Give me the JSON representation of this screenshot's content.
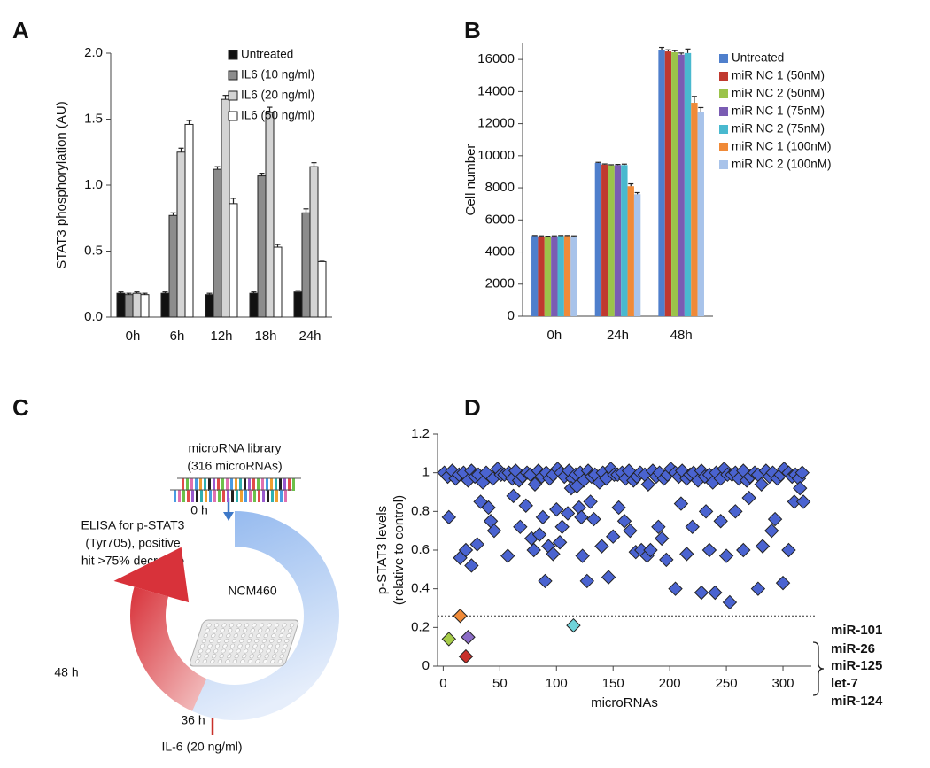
{
  "panels": [
    "A",
    "B",
    "C",
    "D"
  ],
  "chart_data": [
    {
      "type": "bar",
      "ylabel": "STAT3 phosphorylation (AU)",
      "categories": [
        "0h",
        "6h",
        "12h",
        "18h",
        "24h"
      ],
      "series": [
        {
          "name": "Untreated",
          "color": "#111111",
          "values": [
            0.18,
            0.18,
            0.17,
            0.18,
            0.19
          ],
          "errors": [
            0.01,
            0.01,
            0.01,
            0.01,
            0.01
          ]
        },
        {
          "name": "IL6 (10 ng/ml)",
          "color": "#8c8c8c",
          "values": [
            0.17,
            0.77,
            1.12,
            1.07,
            0.79
          ],
          "errors": [
            0.01,
            0.02,
            0.02,
            0.02,
            0.03
          ]
        },
        {
          "name": "IL6 (20 ng/ml)",
          "color": "#d4d4d4",
          "values": [
            0.18,
            1.25,
            1.65,
            1.55,
            1.14
          ],
          "errors": [
            0.01,
            0.03,
            0.03,
            0.04,
            0.03
          ]
        },
        {
          "name": "IL6 (50 ng/ml)",
          "color": "#ffffff",
          "values": [
            0.17,
            1.46,
            0.86,
            0.53,
            0.42
          ],
          "errors": [
            0.01,
            0.03,
            0.04,
            0.02,
            0.01
          ]
        }
      ],
      "ylim": [
        0,
        2
      ],
      "yticks": [
        {
          "value": 0,
          "label": "0.0"
        },
        0.5,
        {
          "value": 1,
          "label": "1.0"
        },
        1.5,
        {
          "value": 2,
          "label": "2.0"
        }
      ],
      "legend": "top-right",
      "bar_outline": true
    },
    {
      "type": "bar",
      "ylabel": "Cell number",
      "categories": [
        "0h",
        "24h",
        "48h"
      ],
      "series": [
        {
          "name": "Untreated",
          "color": "#4f7fcc",
          "values": [
            5000,
            9550,
            16600
          ],
          "errors": [
            30,
            40,
            150
          ]
        },
        {
          "name": "miR NC 1 (50nM)",
          "color": "#c0392f",
          "values": [
            4980,
            9450,
            16500
          ],
          "errors": [
            30,
            40,
            100
          ]
        },
        {
          "name": "miR NC 2 (50nM)",
          "color": "#9bc34a",
          "values": [
            4960,
            9400,
            16450
          ],
          "errors": [
            30,
            40,
            100
          ]
        },
        {
          "name": "miR NC 1 (75nM)",
          "color": "#7a5cb3",
          "values": [
            4980,
            9420,
            16300
          ],
          "errors": [
            30,
            40,
            100
          ]
        },
        {
          "name": "miR NC 2 (75nM)",
          "color": "#49b9cf",
          "values": [
            5000,
            9420,
            16400
          ],
          "errors": [
            30,
            60,
            250
          ]
        },
        {
          "name": "miR NC 1 (100nM)",
          "color": "#f08a38",
          "values": [
            5000,
            8100,
            13300
          ],
          "errors": [
            30,
            150,
            400
          ]
        },
        {
          "name": "miR NC 2 (100nM)",
          "color": "#a8c3ea",
          "values": [
            4980,
            7600,
            12700
          ],
          "errors": [
            30,
            100,
            300
          ]
        }
      ],
      "ylim": [
        0,
        17000
      ],
      "yticks": [
        0,
        2000,
        4000,
        6000,
        8000,
        10000,
        12000,
        14000,
        16000
      ],
      "legend": "top-right",
      "bar_outline": false
    },
    {
      "type": "scatter",
      "xlabel": "microRNAs",
      "ylabel": [
        "p-STAT3 levels",
        "(relative to control)"
      ],
      "xlim": [
        -5,
        325
      ],
      "xticks": [
        0,
        50,
        100,
        150,
        200,
        250,
        300
      ],
      "ylim": [
        0,
        1.2
      ],
      "yticks": [
        0,
        0.2,
        0.4,
        0.6,
        0.8,
        1,
        1.2
      ],
      "threshold": 0.26,
      "series": [
        {
          "color": "#4a63d0",
          "x": [
            1,
            4,
            8,
            11,
            14,
            18,
            22,
            25,
            28,
            31,
            35,
            38,
            44,
            48,
            51,
            54,
            58,
            61,
            64,
            67,
            70,
            74,
            77,
            81,
            84,
            87,
            91,
            94,
            97,
            101,
            104,
            107,
            111,
            114,
            117,
            121,
            124,
            128,
            131,
            134,
            138,
            141,
            144,
            148,
            151,
            154,
            158,
            161,
            164,
            168,
            171,
            174,
            178,
            181,
            185,
            188,
            191,
            195,
            198,
            201,
            205,
            208,
            211,
            215,
            218,
            221,
            225,
            228,
            231,
            235,
            238,
            241,
            245,
            248,
            251,
            255,
            258,
            261,
            265,
            268,
            271,
            275,
            278,
            281,
            285,
            288,
            291,
            295,
            298,
            301,
            305,
            308,
            311,
            314,
            317,
            5,
            15,
            25,
            20,
            30,
            33,
            40,
            42,
            45,
            57,
            62,
            68,
            73,
            78,
            80,
            85,
            88,
            90,
            93,
            97,
            100,
            103,
            105,
            110,
            113,
            118,
            120,
            122,
            123,
            127,
            130,
            133,
            140,
            146,
            150,
            155,
            160,
            165,
            170,
            175,
            180,
            183,
            190,
            193,
            197,
            205,
            210,
            215,
            220,
            228,
            232,
            235,
            240,
            245,
            250,
            253,
            258,
            265,
            270,
            278,
            282,
            290,
            293,
            300,
            305,
            310,
            315,
            318
          ],
          "values": [
            1,
            0.98,
            1.01,
            0.97,
            0.99,
            1,
            0.96,
            1.01,
            0.98,
            0.99,
            0.95,
            1,
            0.97,
            1.02,
            0.99,
            0.99,
            1,
            0.97,
            1.01,
            0.96,
            0.98,
            1,
            0.99,
            0.94,
            1.01,
            0.98,
            1,
            0.97,
            0.99,
            1.02,
            1,
            0.98,
            1.01,
            0.97,
            0.99,
            1,
            0.96,
            1.01,
            0.98,
            0.99,
            0.95,
            1,
            0.97,
            1.02,
            0.99,
            0.99,
            1,
            0.97,
            1.01,
            0.96,
            0.98,
            1,
            0.99,
            0.94,
            1.01,
            0.98,
            1,
            0.97,
            0.99,
            1.02,
            1,
            0.98,
            1.01,
            0.97,
            0.99,
            1,
            0.96,
            1.01,
            0.98,
            0.99,
            0.95,
            1,
            0.97,
            1.02,
            0.99,
            0.99,
            1,
            0.97,
            1.01,
            0.96,
            0.98,
            1,
            0.99,
            0.94,
            1.01,
            0.98,
            1,
            0.97,
            0.99,
            1.02,
            1,
            0.98,
            0.99,
            0.97,
            1,
            0.77,
            0.56,
            0.52,
            0.6,
            0.63,
            0.85,
            0.82,
            0.75,
            0.7,
            0.57,
            0.88,
            0.72,
            0.83,
            0.66,
            0.6,
            0.68,
            0.77,
            0.44,
            0.62,
            0.58,
            0.81,
            0.64,
            0.72,
            0.79,
            0.92,
            0.93,
            0.82,
            0.77,
            0.57,
            0.44,
            0.85,
            0.76,
            0.62,
            0.46,
            0.67,
            0.82,
            0.75,
            0.7,
            0.59,
            0.6,
            0.57,
            0.6,
            0.72,
            0.66,
            0.55,
            0.4,
            0.84,
            0.58,
            0.72,
            0.38,
            0.8,
            0.6,
            0.38,
            0.75,
            0.57,
            0.33,
            0.8,
            0.6,
            0.87,
            0.4,
            0.62,
            0.7,
            0.76,
            0.43,
            0.6,
            0.85,
            0.92,
            0.85
          ]
        },
        {
          "name": "miR-101",
          "color": "#f08a38",
          "x": [
            15
          ],
          "values": [
            0.26
          ]
        },
        {
          "name": "miR-26",
          "color": "#6fd3da",
          "x": [
            115
          ],
          "values": [
            0.21
          ]
        },
        {
          "name": "miR-125",
          "color": "#8b6cc6",
          "x": [
            22
          ],
          "values": [
            0.15
          ]
        },
        {
          "name": "let-7",
          "color": "#a6cc48",
          "x": [
            5
          ],
          "values": [
            0.14
          ]
        },
        {
          "name": "miR-124",
          "color": "#c8302a",
          "x": [
            20
          ],
          "values": [
            0.05
          ]
        }
      ]
    }
  ],
  "diagram_c": {
    "library": [
      "microRNA library",
      "(316 microRNAs)"
    ],
    "start_time": "0 h",
    "readout": [
      "ELISA for p-STAT3",
      "(Tyr705), positive",
      "hit >75% decrease"
    ],
    "cell_line": "NCM460",
    "end_time": "48 h",
    "stim_time": "36 h",
    "stimulus": "IL-6 (20 ng/ml)"
  }
}
